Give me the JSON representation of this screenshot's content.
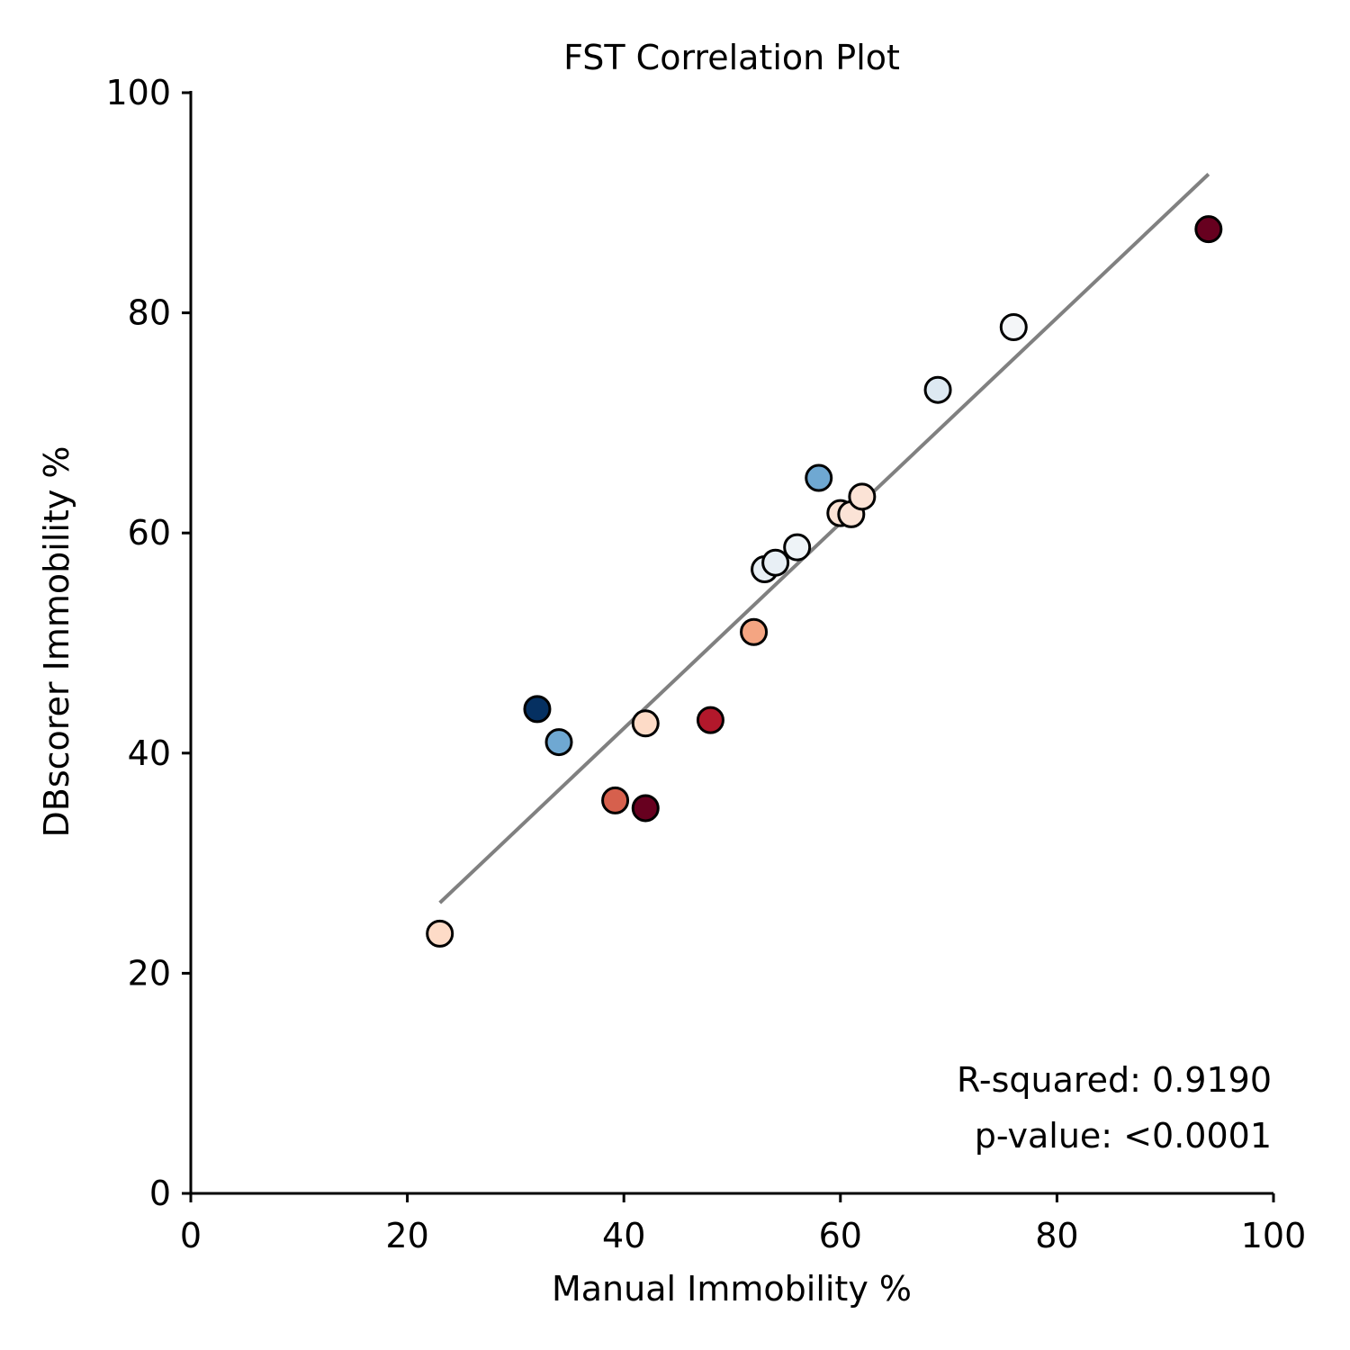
{
  "chart_data": {
    "type": "scatter",
    "title": "FST Correlation Plot",
    "xlabel": "Manual Immobility %",
    "ylabel": "DBscorer Immobility %",
    "xlim": [
      0,
      100
    ],
    "ylim": [
      0,
      100
    ],
    "xticks": [
      0,
      20,
      40,
      60,
      80,
      100
    ],
    "yticks": [
      0,
      20,
      40,
      60,
      80,
      100
    ],
    "grid": false,
    "points": [
      {
        "x": 23,
        "y": 23.6,
        "color": "#fddbc7"
      },
      {
        "x": 32,
        "y": 44.0,
        "color": "#053061"
      },
      {
        "x": 34,
        "y": 41.0,
        "color": "#6fa8d2"
      },
      {
        "x": 39.2,
        "y": 35.7,
        "color": "#d6604d"
      },
      {
        "x": 42,
        "y": 35.0,
        "color": "#67001f"
      },
      {
        "x": 42,
        "y": 42.7,
        "color": "#fddbc7"
      },
      {
        "x": 48,
        "y": 43.0,
        "color": "#b2182b"
      },
      {
        "x": 52,
        "y": 51.0,
        "color": "#f4a582"
      },
      {
        "x": 53,
        "y": 56.7,
        "color": "#e8eff5"
      },
      {
        "x": 54,
        "y": 57.3,
        "color": "#e8eff5"
      },
      {
        "x": 56,
        "y": 58.7,
        "color": "#eef3f7"
      },
      {
        "x": 58,
        "y": 65.0,
        "color": "#6fa8d2"
      },
      {
        "x": 60,
        "y": 61.8,
        "color": "#fbe3d6"
      },
      {
        "x": 61,
        "y": 61.7,
        "color": "#fbe3d6"
      },
      {
        "x": 62,
        "y": 63.3,
        "color": "#fbe3d6"
      },
      {
        "x": 69,
        "y": 73.0,
        "color": "#dde9f2"
      },
      {
        "x": 76,
        "y": 78.7,
        "color": "#f4f6f8"
      },
      {
        "x": 94,
        "y": 87.6,
        "color": "#67001f"
      }
    ],
    "fit_line": {
      "x": [
        23,
        94
      ],
      "y": [
        26.4,
        92.6
      ],
      "color": "#808080"
    },
    "annotations": [
      "R-squared: 0.9190",
      "p-value: <0.0001"
    ]
  }
}
